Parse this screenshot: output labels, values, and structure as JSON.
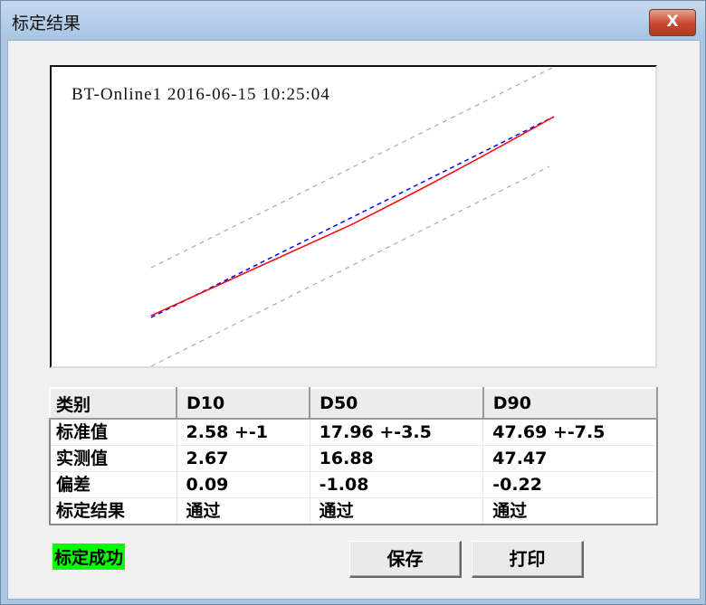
{
  "window": {
    "title": "标定结果",
    "close_label": "X"
  },
  "plot": {
    "title": "BT-Online1 2016-06-15 10:25:04",
    "colors": {
      "measured": "#ff0000",
      "standard": "#0000ff",
      "limits": "#aaaaaa"
    }
  },
  "table": {
    "headers": [
      "类别",
      "D10",
      "D50",
      "D90"
    ],
    "rows": [
      [
        "标准值",
        "2.58 +-1",
        "17.96 +-3.5",
        "47.69 +-7.5"
      ],
      [
        "实测值",
        "2.67",
        "16.88",
        "47.47"
      ],
      [
        "偏差",
        "0.09",
        "-1.08",
        "-0.22"
      ],
      [
        "标定结果",
        "通过",
        "通过",
        "通过"
      ]
    ]
  },
  "status": {
    "text": "标定成功",
    "color": "#00ff00"
  },
  "buttons": {
    "save": "保存",
    "print": "打印"
  }
}
